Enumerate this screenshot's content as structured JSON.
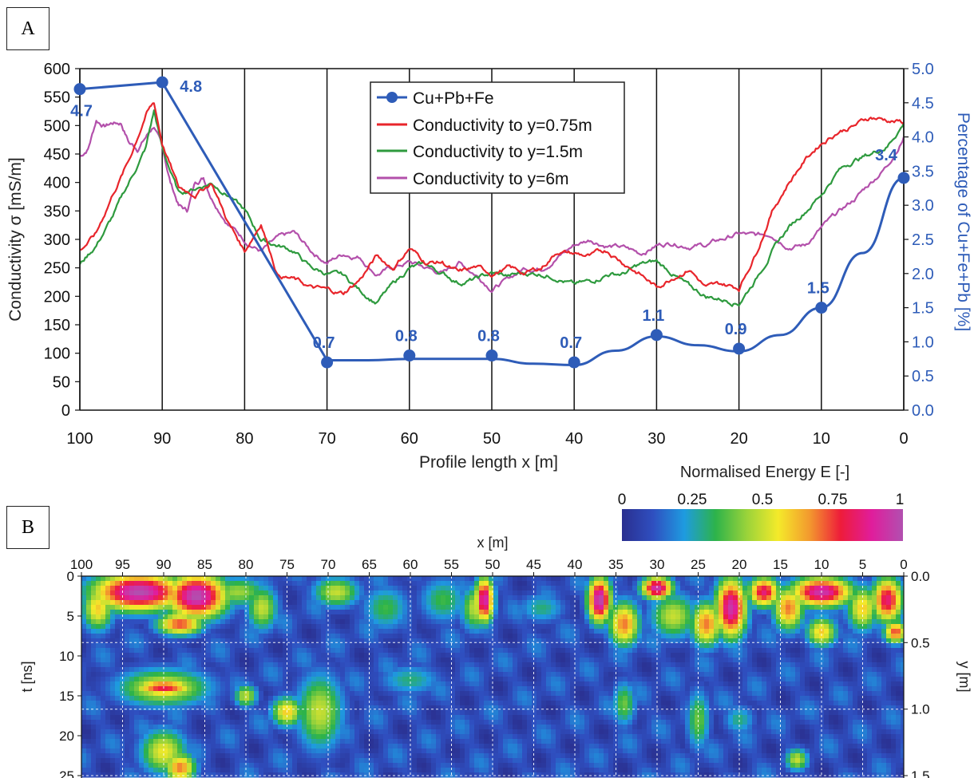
{
  "panel_a_label": "A",
  "panel_b_label": "B",
  "colors": {
    "metals": "#2e5cb8",
    "cond_075": "#e8252b",
    "cond_15": "#2e9a3e",
    "cond_6": "#b350ab",
    "axis_right_text": "#2e5cb8"
  },
  "chart_data": [
    {
      "type": "line",
      "xlabel": "Profile length  x [m]",
      "ylabel": "Conductivity  σ [mS/m]",
      "y2label": "Percentage  of Cu+Fe+Pb [%]",
      "xlim": [
        100,
        0
      ],
      "ylim": [
        0,
        600
      ],
      "y2lim": [
        0,
        5
      ],
      "x_ticks": [
        100,
        90,
        80,
        70,
        60,
        50,
        40,
        30,
        20,
        10,
        0
      ],
      "y_ticks": [
        0,
        50,
        100,
        150,
        200,
        250,
        300,
        350,
        400,
        450,
        500,
        550,
        600
      ],
      "y2_ticks": [
        "0.0",
        "0.5",
        "1.0",
        "1.5",
        "2.0",
        "2.5",
        "3.0",
        "3.5",
        "4.0",
        "4.5",
        "5.0"
      ],
      "vertical_gridlines": true,
      "legend_position": "top-center",
      "series": [
        {
          "name": "Cu+Pb+Fe",
          "axis": "right",
          "marker": "circle",
          "x": [
            100,
            90,
            70,
            60,
            50,
            40,
            30,
            20,
            10,
            0
          ],
          "y": [
            4.7,
            4.8,
            0.7,
            0.8,
            0.8,
            0.7,
            1.1,
            0.9,
            1.5,
            3.4
          ],
          "labels": [
            "4.7",
            "4.8",
            "0.7",
            "0.8",
            "0.8",
            "0.7",
            "1.1",
            "0.9",
            "1.5",
            "3.4"
          ],
          "curve_x": [
            100,
            90,
            70,
            65,
            60,
            55,
            50,
            45,
            40,
            35,
            30,
            25,
            20,
            15,
            10,
            5,
            0
          ],
          "curve_y": [
            4.7,
            4.8,
            0.73,
            0.73,
            0.75,
            0.75,
            0.75,
            0.68,
            0.66,
            0.87,
            1.08,
            0.95,
            0.86,
            1.1,
            1.5,
            2.3,
            3.4
          ]
        },
        {
          "name": "Conductivity to y=0.75m",
          "axis": "left",
          "x": [
            100,
            98,
            96,
            94,
            92,
            91,
            90,
            88,
            86,
            84,
            82,
            80,
            78,
            76,
            74,
            72,
            70,
            68,
            66,
            64,
            62,
            60,
            58,
            56,
            54,
            52,
            50,
            48,
            46,
            44,
            42,
            40,
            38,
            36,
            34,
            32,
            30,
            28,
            26,
            24,
            22,
            20,
            18,
            16,
            14,
            12,
            10,
            8,
            6,
            4,
            2,
            0
          ],
          "y": [
            280,
            310,
            380,
            440,
            520,
            540,
            470,
            390,
            380,
            400,
            330,
            280,
            330,
            240,
            230,
            215,
            210,
            205,
            230,
            270,
            250,
            285,
            260,
            260,
            240,
            250,
            240,
            250,
            240,
            250,
            280,
            275,
            270,
            280,
            260,
            240,
            215,
            235,
            250,
            215,
            220,
            215,
            275,
            350,
            400,
            440,
            470,
            490,
            500,
            515,
            510,
            505
          ]
        },
        {
          "name": "Conductivity to y=1.5m",
          "axis": "left",
          "x": [
            100,
            98,
            96,
            94,
            92,
            91,
            90,
            88,
            86,
            84,
            82,
            80,
            78,
            76,
            74,
            72,
            70,
            68,
            66,
            64,
            62,
            60,
            58,
            56,
            54,
            52,
            50,
            48,
            46,
            44,
            42,
            40,
            38,
            36,
            34,
            32,
            30,
            28,
            26,
            24,
            22,
            20,
            18,
            16,
            14,
            12,
            10,
            8,
            6,
            4,
            2,
            0
          ],
          "y": [
            255,
            290,
            340,
            400,
            460,
            525,
            460,
            380,
            390,
            400,
            380,
            350,
            300,
            290,
            280,
            250,
            240,
            235,
            210,
            190,
            220,
            250,
            255,
            240,
            225,
            230,
            240,
            235,
            240,
            240,
            235,
            220,
            225,
            240,
            240,
            255,
            260,
            240,
            215,
            200,
            195,
            190,
            230,
            280,
            320,
            350,
            380,
            420,
            440,
            450,
            465,
            505
          ]
        },
        {
          "name": "Conductivity to y=6m",
          "axis": "left",
          "x": [
            100,
            99,
            98,
            97,
            96,
            95,
            94,
            93,
            92,
            91,
            90,
            89,
            88,
            87,
            86,
            85,
            84,
            82,
            80,
            78,
            76,
            74,
            72,
            70,
            68,
            66,
            64,
            62,
            60,
            58,
            56,
            54,
            52,
            50,
            48,
            46,
            44,
            42,
            40,
            38,
            36,
            34,
            32,
            30,
            28,
            26,
            24,
            22,
            20,
            18,
            16,
            14,
            12,
            10,
            8,
            6,
            4,
            2,
            0
          ],
          "y": [
            445,
            460,
            510,
            500,
            505,
            505,
            470,
            460,
            480,
            500,
            460,
            400,
            360,
            350,
            400,
            410,
            375,
            330,
            300,
            280,
            300,
            310,
            280,
            260,
            275,
            270,
            240,
            250,
            260,
            250,
            240,
            260,
            240,
            215,
            230,
            250,
            250,
            270,
            290,
            300,
            290,
            285,
            275,
            290,
            295,
            290,
            290,
            300,
            310,
            305,
            310,
            290,
            290,
            320,
            345,
            370,
            400,
            430,
            480
          ]
        }
      ]
    },
    {
      "type": "heatmap",
      "title": "Normalised Energy  E [-]",
      "xlabel": "x [m]",
      "ylabel": "t [ns]",
      "y2label": "y [m]",
      "x_ticks": [
        100,
        95,
        90,
        85,
        80,
        75,
        70,
        65,
        60,
        55,
        50,
        45,
        40,
        35,
        30,
        25,
        20,
        15,
        10,
        5,
        0
      ],
      "t_ticks": [
        0,
        5,
        10,
        15,
        20,
        25
      ],
      "y_ticks": [
        "0.0",
        "0.5",
        "1.0",
        "1.5"
      ],
      "y_tick_t": [
        0,
        8.33,
        16.67,
        25
      ],
      "colorbar_ticks": [
        "0",
        "0.25",
        "0.5",
        "0.75",
        "1"
      ],
      "colorbar_stops": [
        "#2a2f8f",
        "#2f4fc0",
        "#1e9be0",
        "#2db34a",
        "#9ad33a",
        "#f4ea2a",
        "#f39a2e",
        "#ee1c3a",
        "#e01d9c",
        "#b150b0"
      ],
      "xlim": [
        100,
        0
      ],
      "tlim": [
        0,
        25
      ],
      "background_value": 0.1,
      "grid": "dashed-white",
      "blobs": [
        {
          "x": 93,
          "t": 2,
          "rx": 6,
          "rt": 2.5,
          "v": 1.0
        },
        {
          "x": 86,
          "t": 2.5,
          "rx": 4,
          "rt": 3,
          "v": 1.0
        },
        {
          "x": 88,
          "t": 6,
          "rx": 3,
          "rt": 1.5,
          "v": 0.75
        },
        {
          "x": 98,
          "t": 4,
          "rx": 2,
          "rt": 3,
          "v": 0.6
        },
        {
          "x": 90,
          "t": 14,
          "rx": 4,
          "rt": 1.2,
          "v": 0.8
        },
        {
          "x": 90,
          "t": 14,
          "rx": 6,
          "rt": 2.5,
          "v": 0.55
        },
        {
          "x": 90,
          "t": 22,
          "rx": 3,
          "rt": 3,
          "v": 0.55
        },
        {
          "x": 88,
          "t": 24,
          "rx": 2,
          "rt": 2,
          "v": 0.7
        },
        {
          "x": 81,
          "t": 2,
          "rx": 4,
          "rt": 2,
          "v": 0.45
        },
        {
          "x": 78,
          "t": 4,
          "rx": 2,
          "rt": 3,
          "v": 0.5
        },
        {
          "x": 71,
          "t": 17,
          "rx": 3,
          "rt": 5,
          "v": 0.5
        },
        {
          "x": 75,
          "t": 17,
          "rx": 2,
          "rt": 2,
          "v": 0.6
        },
        {
          "x": 80,
          "t": 15,
          "rx": 1.5,
          "rt": 1.5,
          "v": 0.5
        },
        {
          "x": 69,
          "t": 2,
          "rx": 3,
          "rt": 2,
          "v": 0.5
        },
        {
          "x": 63,
          "t": 4,
          "rx": 3,
          "rt": 3,
          "v": 0.35
        },
        {
          "x": 56,
          "t": 3,
          "rx": 3,
          "rt": 3,
          "v": 0.35
        },
        {
          "x": 52,
          "t": 4,
          "rx": 2,
          "rt": 3,
          "v": 0.5
        },
        {
          "x": 51,
          "t": 3,
          "rx": 1.2,
          "rt": 3,
          "v": 0.95
        },
        {
          "x": 60,
          "t": 13,
          "rx": 4,
          "rt": 2,
          "v": 0.3
        },
        {
          "x": 44,
          "t": 4,
          "rx": 3,
          "rt": 2,
          "v": 0.3
        },
        {
          "x": 37,
          "t": 3,
          "rx": 1.5,
          "rt": 3,
          "v": 1.0
        },
        {
          "x": 34,
          "t": 6,
          "rx": 2,
          "rt": 3,
          "v": 0.7
        },
        {
          "x": 34,
          "t": 16,
          "rx": 1.5,
          "rt": 3,
          "v": 0.4
        },
        {
          "x": 30,
          "t": 1.5,
          "rx": 2,
          "rt": 1.5,
          "v": 0.95
        },
        {
          "x": 28,
          "t": 5,
          "rx": 3,
          "rt": 3,
          "v": 0.5
        },
        {
          "x": 24,
          "t": 6,
          "rx": 2,
          "rt": 3,
          "v": 0.7
        },
        {
          "x": 21,
          "t": 4,
          "rx": 2,
          "rt": 4,
          "v": 0.95
        },
        {
          "x": 17,
          "t": 2,
          "rx": 2,
          "rt": 2,
          "v": 0.85
        },
        {
          "x": 14,
          "t": 4,
          "rx": 2,
          "rt": 3,
          "v": 0.7
        },
        {
          "x": 10,
          "t": 2,
          "rx": 4,
          "rt": 2,
          "v": 0.95
        },
        {
          "x": 10,
          "t": 7,
          "rx": 2,
          "rt": 2,
          "v": 0.6
        },
        {
          "x": 5,
          "t": 4,
          "rx": 2,
          "rt": 3,
          "v": 0.6
        },
        {
          "x": 2,
          "t": 3,
          "rx": 2,
          "rt": 3,
          "v": 0.85
        },
        {
          "x": 1,
          "t": 7,
          "rx": 1.5,
          "rt": 1.5,
          "v": 0.75
        },
        {
          "x": 20,
          "t": 18,
          "rx": 2,
          "rt": 2,
          "v": 0.3
        },
        {
          "x": 13,
          "t": 23,
          "rx": 1.5,
          "rt": 1.5,
          "v": 0.5
        },
        {
          "x": 25,
          "t": 18,
          "rx": 1.5,
          "rt": 4,
          "v": 0.4
        }
      ]
    }
  ]
}
